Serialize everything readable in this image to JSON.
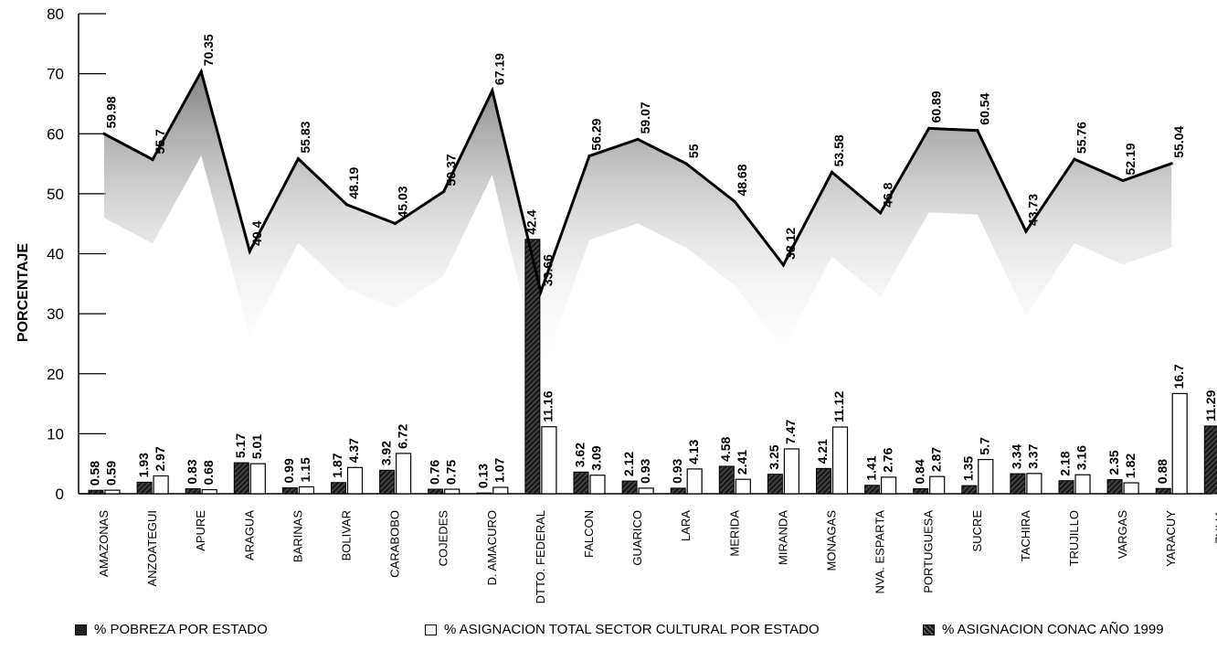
{
  "chart_data": {
    "type": "bar",
    "title": "",
    "ylabel": "PORCENTAJE",
    "xlabel": "",
    "ylim": [
      0,
      80
    ],
    "yticks": [
      "0",
      "10",
      "20",
      "30",
      "40",
      "50",
      "60",
      "70",
      "80"
    ],
    "categories": [
      "AMAZONAS",
      "ANZOATEGUI",
      "APURE",
      "ARAGUA",
      "BARINAS",
      "BOLIVAR",
      "CARABOBO",
      "COJEDES",
      "D. AMACURO",
      "DTTO. FEDERAL",
      "FALCON",
      "GUARICO",
      "LARA",
      "MERIDA",
      "MIRANDA",
      "MONAGAS",
      "NVA. ESPARTA",
      "PORTUGUESA",
      "SUCRE",
      "TACHIRA",
      "TRUJILLO",
      "VARGAS",
      "YARACUY",
      "ZULIA"
    ],
    "series": [
      {
        "name": "% POBREZA POR ESTADO",
        "kind": "line",
        "values": [
          59.98,
          55.7,
          70.35,
          40.4,
          55.83,
          48.19,
          45.03,
          50.37,
          67.19,
          33.66,
          56.29,
          59.07,
          55,
          48.68,
          38.12,
          53.58,
          46.8,
          60.89,
          60.54,
          43.73,
          55.76,
          52.19,
          55.04,
          null
        ],
        "labels": [
          "59.98",
          "55.7",
          "70.35",
          "40.4",
          "55.83",
          "48.19",
          "45.03",
          "50.37",
          "67.19",
          "33.66",
          "56.29",
          "59.07",
          "55",
          "48.68",
          "38.12",
          "53.58",
          "46.8",
          "60.89",
          "60.54",
          "43.73",
          "55.76",
          "52.19",
          "55.04",
          ""
        ]
      },
      {
        "name": "% ASIGNACION CONAC AÑO 1999",
        "kind": "bar",
        "values": [
          0.58,
          1.93,
          0.83,
          5.17,
          0.99,
          1.87,
          3.92,
          0.76,
          0.13,
          42.4,
          3.62,
          2.12,
          0.93,
          4.58,
          3.25,
          4.21,
          1.41,
          0.84,
          1.35,
          3.34,
          2.18,
          2.35,
          0.88,
          11.29
        ],
        "labels": [
          "0.58",
          "1.93",
          "0.83",
          "5.17",
          "0.99",
          "1.87",
          "3.92",
          "0.76",
          "0.13",
          "42.4",
          "3.62",
          "2.12",
          "0.93",
          "4.58",
          "3.25",
          "4.21",
          "1.41",
          "0.84",
          "1.35",
          "3.34",
          "2.18",
          "2.35",
          "0.88",
          "11.29"
        ]
      },
      {
        "name": "% ASIGNACION TOTAL SECTOR CULTURAL POR ESTADO",
        "kind": "bar",
        "values": [
          0.59,
          2.97,
          0.68,
          5.01,
          1.15,
          4.37,
          6.72,
          0.75,
          1.07,
          11.16,
          3.09,
          0.93,
          4.13,
          2.41,
          7.47,
          11.12,
          2.76,
          2.87,
          5.7,
          3.37,
          3.16,
          1.82,
          16.7,
          null
        ],
        "labels": [
          "0.59",
          "2.97",
          "0.68",
          "5.01",
          "1.15",
          "4.37",
          "6.72",
          "0.75",
          "1.07",
          "11.16",
          "3.09",
          "0.93",
          "4.13",
          "2.41",
          "7.47",
          "11.12",
          "2.76",
          "2.87",
          "5.7",
          "3.37",
          "3.16",
          "1.82",
          "16.7",
          ""
        ]
      }
    ],
    "legend": {
      "placement": "bottom",
      "entries": [
        "% POBREZA POR ESTADO",
        "% ASIGNACION TOTAL SECTOR CULTURAL POR ESTADO",
        "% ASIGNACION CONAC AÑO 1999"
      ]
    },
    "colors": {
      "line": "#000000",
      "dark_bar": "#1a1a1a",
      "light_bar": "#ffffff",
      "shade": "#9a9a9a"
    }
  }
}
